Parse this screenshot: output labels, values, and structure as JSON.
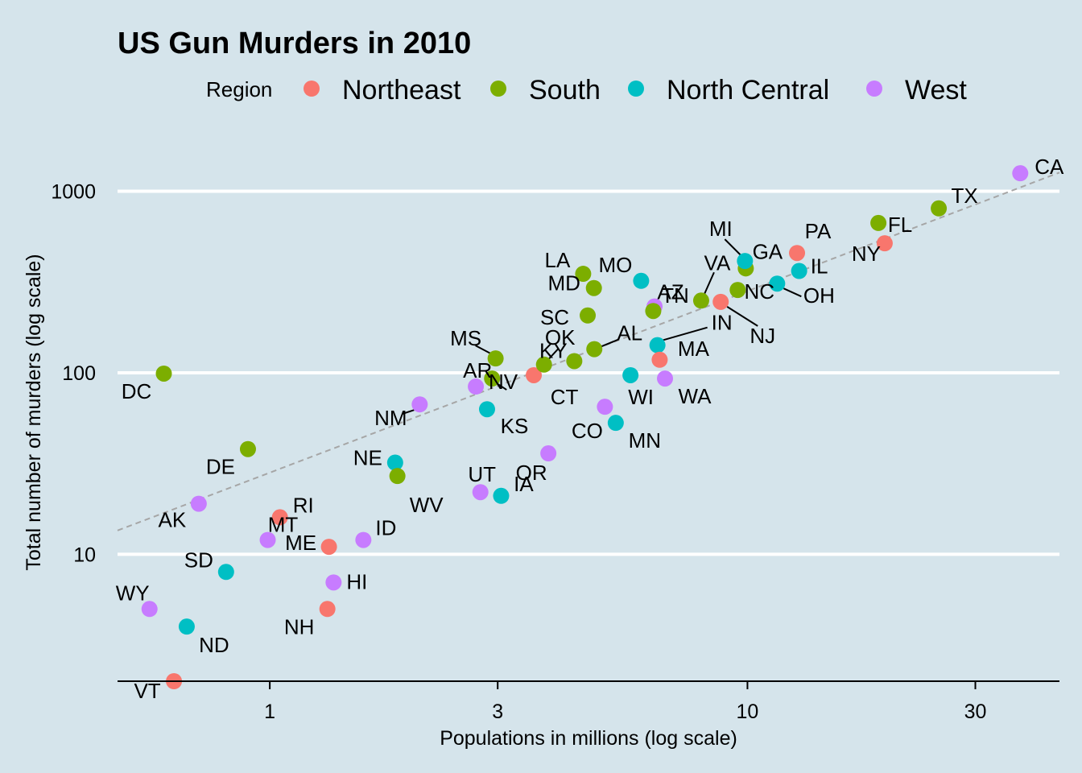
{
  "chart_data": {
    "type": "scatter",
    "title": "US Gun Murders in 2010",
    "xlabel": "Populations in millions (log scale)",
    "ylabel": "Total number of murders (log scale)",
    "x_scale": "log",
    "y_scale": "log",
    "xlim": [
      0.48,
      45
    ],
    "ylim": [
      2.0,
      1800
    ],
    "x_ticks": [
      {
        "value": 1,
        "label": "1"
      },
      {
        "value": 3,
        "label": "3"
      },
      {
        "value": 10,
        "label": "10"
      },
      {
        "value": 30,
        "label": "30"
      }
    ],
    "y_ticks": [
      {
        "value": 10,
        "label": "10"
      },
      {
        "value": 100,
        "label": "100"
      },
      {
        "value": 1000,
        "label": "1000"
      }
    ],
    "grid": "horizontal major lines",
    "legend": {
      "title": "Region",
      "position": "top",
      "entries": [
        {
          "name": "Northeast",
          "color": "#f8766d"
        },
        {
          "name": "South",
          "color": "#7cae00"
        },
        {
          "name": "North Central",
          "color": "#00bfc4"
        },
        {
          "name": "West",
          "color": "#c77cff"
        }
      ]
    },
    "reference_line": {
      "style": "dashed",
      "color": "#a6a6a6",
      "intercept_log10": 1.45,
      "slope": 1,
      "description": "average murder rate"
    },
    "points": [
      {
        "abb": "AL",
        "region": "South",
        "population_millions": 4.78,
        "murders": 135
      },
      {
        "abb": "AK",
        "region": "West",
        "population_millions": 0.71,
        "murders": 19
      },
      {
        "abb": "AZ",
        "region": "West",
        "population_millions": 6.39,
        "murders": 232
      },
      {
        "abb": "AR",
        "region": "South",
        "population_millions": 2.92,
        "murders": 93
      },
      {
        "abb": "CA",
        "region": "West",
        "population_millions": 37.25,
        "murders": 1257
      },
      {
        "abb": "CO",
        "region": "West",
        "population_millions": 5.03,
        "murders": 65
      },
      {
        "abb": "CT",
        "region": "Northeast",
        "population_millions": 3.57,
        "murders": 97
      },
      {
        "abb": "DE",
        "region": "South",
        "population_millions": 0.9,
        "murders": 38
      },
      {
        "abb": "DC",
        "region": "South",
        "population_millions": 0.6,
        "murders": 99
      },
      {
        "abb": "FL",
        "region": "South",
        "population_millions": 18.8,
        "murders": 669
      },
      {
        "abb": "GA",
        "region": "South",
        "population_millions": 9.92,
        "murders": 376
      },
      {
        "abb": "HI",
        "region": "West",
        "population_millions": 1.36,
        "murders": 7
      },
      {
        "abb": "ID",
        "region": "West",
        "population_millions": 1.57,
        "murders": 12
      },
      {
        "abb": "IL",
        "region": "North Central",
        "population_millions": 12.83,
        "murders": 364
      },
      {
        "abb": "IN",
        "region": "North Central",
        "population_millions": 6.48,
        "murders": 142
      },
      {
        "abb": "IA",
        "region": "North Central",
        "population_millions": 3.05,
        "murders": 21
      },
      {
        "abb": "KS",
        "region": "North Central",
        "population_millions": 2.85,
        "murders": 63
      },
      {
        "abb": "KY",
        "region": "South",
        "population_millions": 4.34,
        "murders": 116
      },
      {
        "abb": "LA",
        "region": "South",
        "population_millions": 4.53,
        "murders": 351
      },
      {
        "abb": "ME",
        "region": "Northeast",
        "population_millions": 1.33,
        "murders": 11
      },
      {
        "abb": "MD",
        "region": "South",
        "population_millions": 4.77,
        "murders": 293
      },
      {
        "abb": "MA",
        "region": "Northeast",
        "population_millions": 6.55,
        "murders": 118
      },
      {
        "abb": "MI",
        "region": "North Central",
        "population_millions": 9.88,
        "murders": 413
      },
      {
        "abb": "MN",
        "region": "North Central",
        "population_millions": 5.3,
        "murders": 53
      },
      {
        "abb": "MS",
        "region": "South",
        "population_millions": 2.97,
        "murders": 120
      },
      {
        "abb": "MO",
        "region": "North Central",
        "population_millions": 5.99,
        "murders": 321
      },
      {
        "abb": "MT",
        "region": "West",
        "population_millions": 0.99,
        "murders": 12
      },
      {
        "abb": "NE",
        "region": "North Central",
        "population_millions": 1.83,
        "murders": 32
      },
      {
        "abb": "NV",
        "region": "West",
        "population_millions": 2.7,
        "murders": 84
      },
      {
        "abb": "NH",
        "region": "Northeast",
        "population_millions": 1.32,
        "murders": 5
      },
      {
        "abb": "NJ",
        "region": "Northeast",
        "population_millions": 8.79,
        "murders": 246
      },
      {
        "abb": "NM",
        "region": "West",
        "population_millions": 2.06,
        "murders": 67
      },
      {
        "abb": "NY",
        "region": "Northeast",
        "population_millions": 19.38,
        "murders": 517
      },
      {
        "abb": "NC",
        "region": "South",
        "population_millions": 9.54,
        "murders": 286
      },
      {
        "abb": "ND",
        "region": "North Central",
        "population_millions": 0.67,
        "murders": 4
      },
      {
        "abb": "OH",
        "region": "North Central",
        "population_millions": 11.54,
        "murders": 310
      },
      {
        "abb": "OK",
        "region": "South",
        "population_millions": 3.75,
        "murders": 111
      },
      {
        "abb": "OR",
        "region": "West",
        "population_millions": 3.83,
        "murders": 36
      },
      {
        "abb": "PA",
        "region": "Northeast",
        "population_millions": 12.7,
        "murders": 457
      },
      {
        "abb": "RI",
        "region": "Northeast",
        "population_millions": 1.05,
        "murders": 16
      },
      {
        "abb": "SC",
        "region": "South",
        "population_millions": 4.63,
        "murders": 207
      },
      {
        "abb": "SD",
        "region": "North Central",
        "population_millions": 0.81,
        "murders": 8
      },
      {
        "abb": "TN",
        "region": "South",
        "population_millions": 6.35,
        "murders": 219
      },
      {
        "abb": "TX",
        "region": "South",
        "population_millions": 25.15,
        "murders": 805
      },
      {
        "abb": "UT",
        "region": "West",
        "population_millions": 2.76,
        "murders": 22
      },
      {
        "abb": "VT",
        "region": "Northeast",
        "population_millions": 0.63,
        "murders": 2
      },
      {
        "abb": "VA",
        "region": "South",
        "population_millions": 8.0,
        "murders": 250
      },
      {
        "abb": "WA",
        "region": "West",
        "population_millions": 6.72,
        "murders": 93
      },
      {
        "abb": "WV",
        "region": "South",
        "population_millions": 1.85,
        "murders": 27
      },
      {
        "abb": "WI",
        "region": "North Central",
        "population_millions": 5.69,
        "murders": 97
      },
      {
        "abb": "WY",
        "region": "West",
        "population_millions": 0.56,
        "murders": 5
      }
    ]
  }
}
